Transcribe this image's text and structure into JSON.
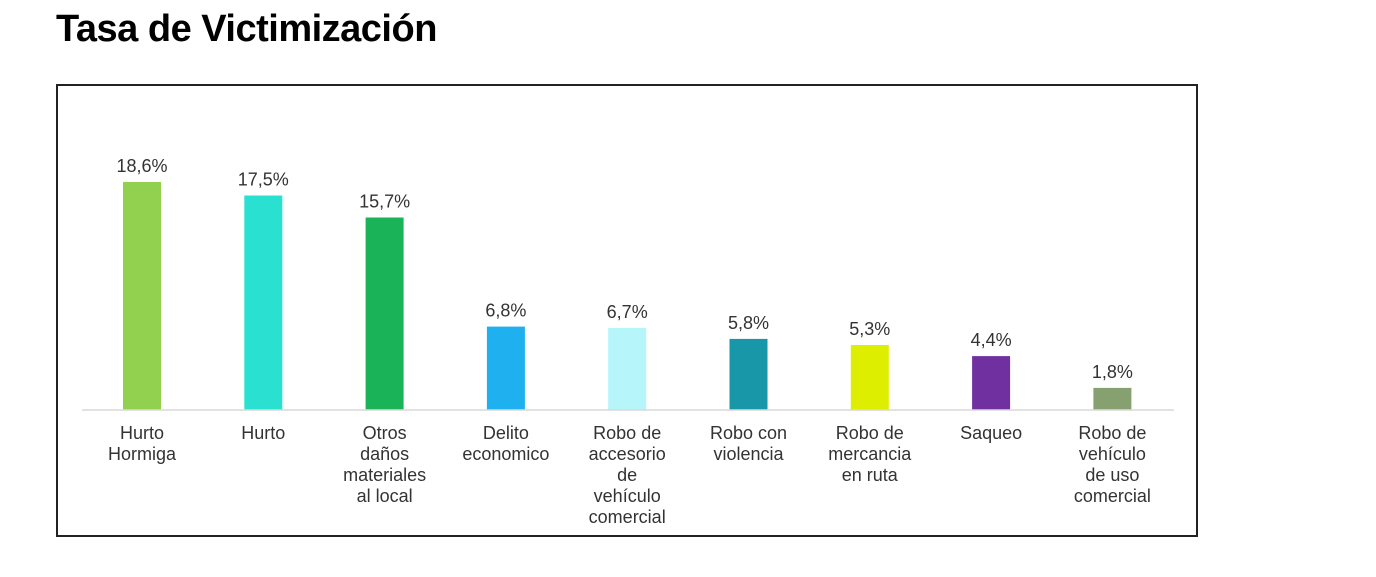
{
  "title": "Tasa de Victimización",
  "chart_data": {
    "type": "bar",
    "categories": [
      [
        "Hurto",
        "Hormiga"
      ],
      [
        "Hurto"
      ],
      [
        "Otros",
        "daños",
        "materiales",
        "al local"
      ],
      [
        "Delito",
        "economico"
      ],
      [
        "Robo de",
        "accesorio",
        "de",
        "vehículo",
        "comercial"
      ],
      [
        "Robo con",
        "violencia"
      ],
      [
        "Robo de",
        "mercancia",
        "en ruta"
      ],
      [
        "Saqueo"
      ],
      [
        "Robo de",
        "vehículo",
        "de uso",
        "comercial"
      ]
    ],
    "values": [
      18.6,
      17.5,
      15.7,
      6.8,
      6.7,
      5.8,
      5.3,
      4.4,
      1.8
    ],
    "value_labels": [
      "18,6%",
      "17,5%",
      "15,7%",
      "6,8%",
      "6,7%",
      "5,8%",
      "5,3%",
      "4,4%",
      "1,8%"
    ],
    "colors": [
      "#92D050",
      "#2AE0D0",
      "#1BB357",
      "#1FB0F0",
      "#B6F5FA",
      "#1897A8",
      "#DDEE00",
      "#7030A0",
      "#86A070"
    ],
    "ylim": [
      0,
      20
    ],
    "grid": false,
    "legend": "none"
  }
}
